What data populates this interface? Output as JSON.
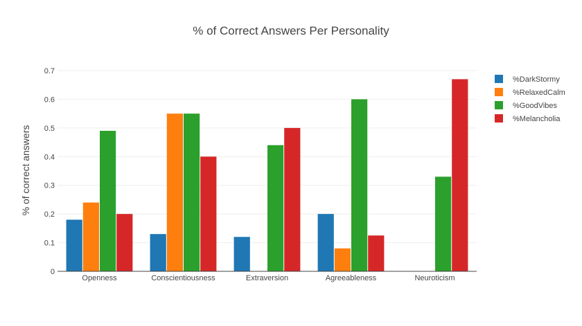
{
  "chart_data": {
    "type": "bar",
    "title": "% of Correct Answers Per Personality",
    "xlabel": "",
    "ylabel": "% of correct answers",
    "ylim": [
      0,
      0.7
    ],
    "yticks": [
      0,
      0.1,
      0.2,
      0.3,
      0.4,
      0.5,
      0.6,
      0.7
    ],
    "grid": true,
    "legend_position": "top-right",
    "categories": [
      "Openness",
      "Conscientiousness",
      "Extraversion",
      "Agreeableness",
      "Neuroticism"
    ],
    "series": [
      {
        "name": "%DarkStormy",
        "color": "#1f77b4",
        "values": [
          0.18,
          0.13,
          0.12,
          0.2,
          0
        ]
      },
      {
        "name": "%RelaxedCalm",
        "color": "#ff7f0e",
        "values": [
          0.24,
          0.55,
          0,
          0.08,
          0
        ]
      },
      {
        "name": "%GoodVibes",
        "color": "#2ca02c",
        "values": [
          0.49,
          0.55,
          0.44,
          0.6,
          0.33
        ]
      },
      {
        "name": "%Melancholia",
        "color": "#d62728",
        "values": [
          0.2,
          0.4,
          0.5,
          0.125,
          0.67
        ]
      }
    ]
  }
}
